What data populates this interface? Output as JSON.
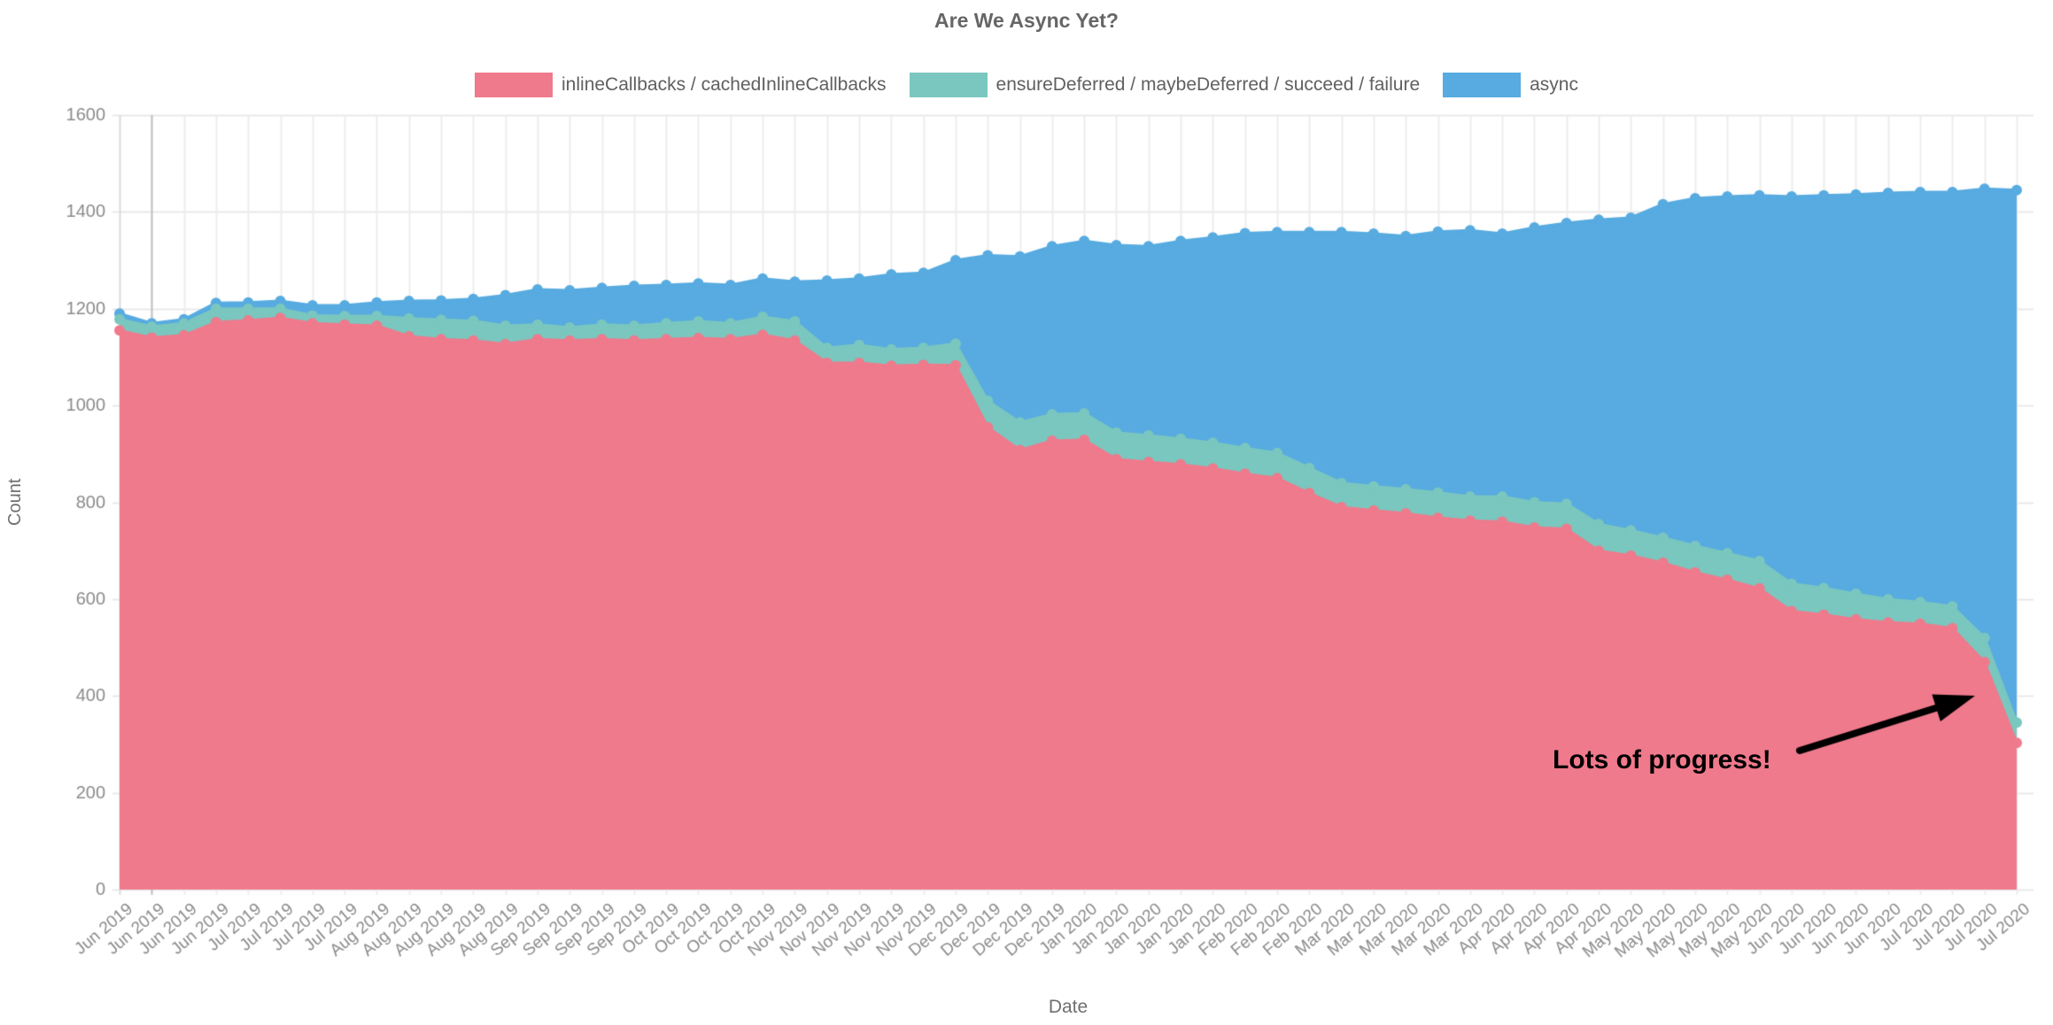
{
  "page": {
    "title": "Are We Async Yet?"
  },
  "legend": {
    "items": [
      {
        "label": "inlineCallbacks / cachedInlineCallbacks",
        "color": "#ef7a8c"
      },
      {
        "label": "ensureDeferred / maybeDeferred / succeed / failure",
        "color": "#7ac7bf"
      },
      {
        "label": "async",
        "color": "#57abe0"
      }
    ]
  },
  "axes": {
    "y_title": "Count",
    "x_title": "Date"
  },
  "annotation": {
    "text": "Lots of progress!"
  },
  "chart_data": {
    "type": "area",
    "stacked": true,
    "title": "Are We Async Yet?",
    "xlabel": "Date",
    "ylabel": "Count",
    "ylim": [
      0,
      1600
    ],
    "y_ticks": [
      0,
      200,
      400,
      600,
      800,
      1000,
      1200,
      1400,
      1600
    ],
    "grid": true,
    "legend_position": "top",
    "x_tick_rotation": -40,
    "colors": {
      "grid": "#e9e9e9",
      "grid_vertical": "#ededed",
      "grid_dark_line": "#bdbdbd",
      "tick_text": "#8b8b8b",
      "annotation_arrow": "#000000"
    },
    "x": [
      "Jun 2019",
      "Jun 2019",
      "Jun 2019",
      "Jun 2019",
      "Jul 2019",
      "Jul 2019",
      "Jul 2019",
      "Jul 2019",
      "Aug 2019",
      "Aug 2019",
      "Aug 2019",
      "Aug 2019",
      "Aug 2019",
      "Sep 2019",
      "Sep 2019",
      "Sep 2019",
      "Sep 2019",
      "Oct 2019",
      "Oct 2019",
      "Oct 2019",
      "Oct 2019",
      "Nov 2019",
      "Nov 2019",
      "Nov 2019",
      "Nov 2019",
      "Nov 2019",
      "Dec 2019",
      "Dec 2019",
      "Dec 2019",
      "Dec 2019",
      "Jan 2020",
      "Jan 2020",
      "Jan 2020",
      "Jan 2020",
      "Jan 2020",
      "Feb 2020",
      "Feb 2020",
      "Feb 2020",
      "Mar 2020",
      "Mar 2020",
      "Mar 2020",
      "Mar 2020",
      "Mar 2020",
      "Apr 2020",
      "Apr 2020",
      "Apr 2020",
      "Apr 2020",
      "May 2020",
      "May 2020",
      "May 2020",
      "May 2020",
      "May 2020",
      "Jun 2020",
      "Jun 2020",
      "Jun 2020",
      "Jun 2020",
      "Jul 2020",
      "Jul 2020",
      "Jul 2020",
      "Jul 2020"
    ],
    "series": [
      {
        "name": "inlineCallbacks / cachedInlineCallbacks",
        "color": "#ef7a8c",
        "values": [
          1155,
          1140,
          1145,
          1172,
          1176,
          1181,
          1170,
          1167,
          1165,
          1143,
          1137,
          1134,
          1127,
          1137,
          1134,
          1137,
          1134,
          1137,
          1139,
          1137,
          1146,
          1134,
          1088,
          1088,
          1082,
          1084,
          1083,
          955,
          908,
          927,
          929,
          889,
          883,
          878,
          870,
          859,
          850,
          819,
          790,
          783,
          777,
          768,
          762,
          760,
          748,
          745,
          700,
          690,
          675,
          655,
          640,
          622,
          575,
          568,
          558,
          552,
          549,
          540,
          470,
          303
        ]
      },
      {
        "name": "ensureDeferred / maybeDeferred / succeed / failure",
        "color": "#7ac7bf",
        "values": [
          23,
          23,
          25,
          28,
          24,
          19,
          16,
          18,
          20,
          37,
          40,
          41,
          38,
          30,
          27,
          30,
          31,
          33,
          35,
          33,
          37,
          40,
          31,
          37,
          34,
          35,
          45,
          55,
          57,
          55,
          55,
          55,
          55,
          53,
          53,
          53,
          52,
          52,
          50,
          50,
          50,
          52,
          50,
          52,
          52,
          52,
          55,
          52,
          52,
          55,
          55,
          57,
          57,
          55,
          53,
          48,
          45,
          45,
          50,
          42
        ]
      },
      {
        "name": "async",
        "color": "#57abe0",
        "values": [
          12,
          7,
          8,
          12,
          13,
          16,
          21,
          22,
          28,
          36,
          40,
          45,
          63,
          73,
          77,
          76,
          82,
          79,
          78,
          79,
          79,
          82,
          139,
          137,
          155,
          155,
          172,
          300,
          343,
          347,
          356,
          387,
          391,
          409,
          424,
          444,
          456,
          487,
          518,
          522,
          523,
          539,
          550,
          543,
          568,
          580,
          629,
          646,
          689,
          718,
          737,
          755,
          800,
          811,
          825,
          839,
          847,
          856,
          928,
          1100
        ]
      }
    ],
    "annotation": {
      "text": "Lots of progress!",
      "arrow_from": [
        2032,
        848
      ],
      "arrow_to": [
        2230,
        786
      ]
    }
  }
}
